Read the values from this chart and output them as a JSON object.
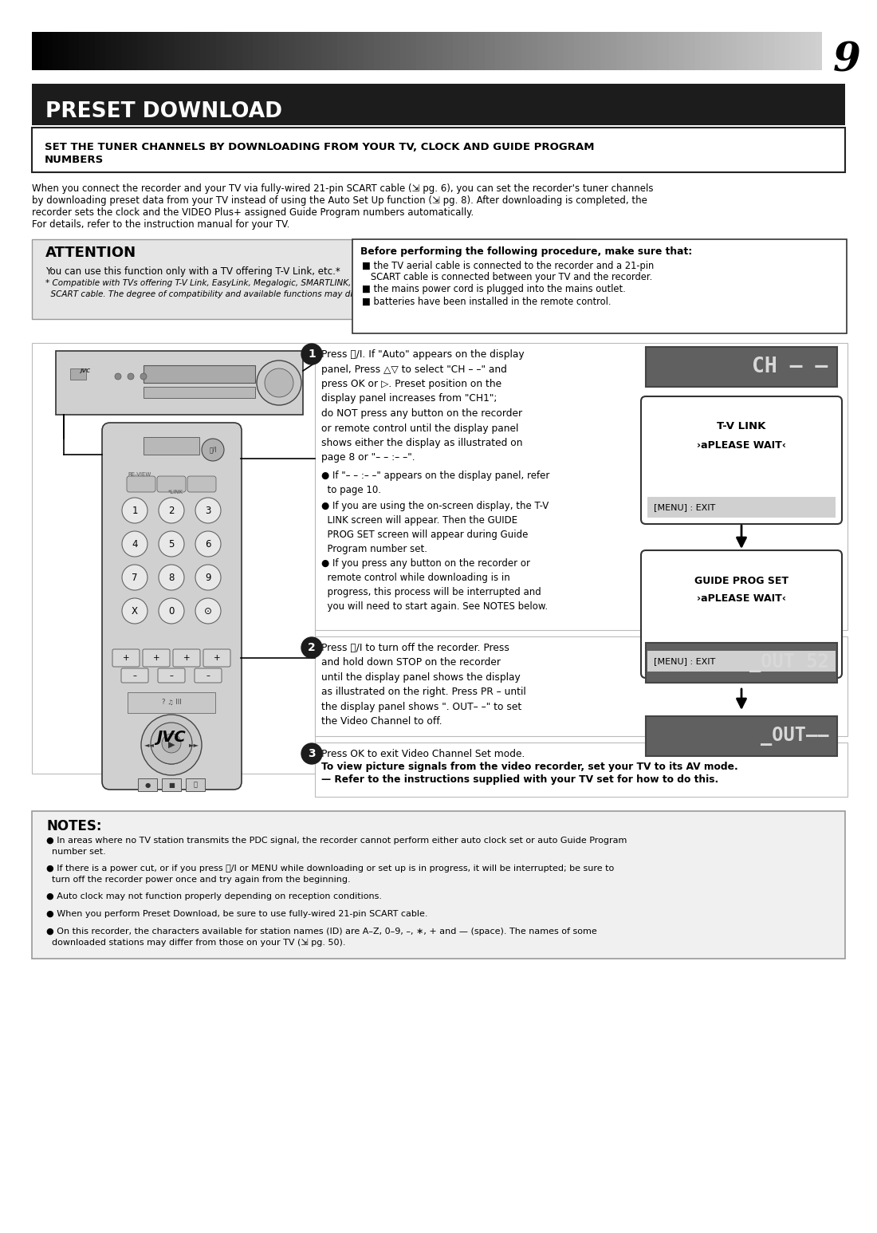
{
  "page_number": "9",
  "title": "PRESET DOWNLOAD",
  "subtitle": "SET THE TUNER CHANNELS BY DOWNLOADING FROM YOUR TV, CLOCK AND GUIDE PROGRAM\nNUMBERS",
  "intro_text1": "When you connect the recorder and your TV via fully-wired 21-pin SCART cable (⇲ pg. 6), you can set the recorder's tuner channels",
  "intro_text2": "by downloading preset data from your TV instead of using the Auto Set Up function (⇲ pg. 8). After downloading is completed, the",
  "intro_text3": "recorder sets the clock and the VIDEO Plus+ assigned Guide Program numbers automatically.",
  "intro_text4": "For details, refer to the instruction manual for your TV.",
  "attention_title": "ATTENTION",
  "attention_text1": "You can use this function only with a TV offering T-V Link, etc.*",
  "attention_text2": "* Compatible with TVs offering T-V Link, EasyLink, Megalogic, SMARTLINK, Q-Link, DATA LOGIC or NexTView Link via fully-wired 21-pin",
  "attention_text3": "  SCART cable. The degree of compatibility and available functions may differ by system.",
  "before_title": "Before performing the following procedure, make sure that:",
  "before_b1a": "■ the TV aerial cable is connected to the recorder and a 21-pin",
  "before_b1b": "   SCART cable is connected between your TV and the recorder.",
  "before_b2": "■ the mains power cord is plugged into the mains outlet.",
  "before_b3": "■ batteries have been installed in the remote control.",
  "step1_main": "Press ⏻/I. If \"Auto\" appears on the display\npanel, Press △▽ to select \"CH – –\" and\npress OK or ▷. Preset position on the\ndisplay panel increases from \"CH1\";\ndo NOT press any button on the recorder\nor remote control until the display panel\nshows either the display as illustrated on\npage 8 or \"– – :– –\".",
  "step1_b1": "● If \"– – :– –\" appears on the display panel, refer\n  to page 10.",
  "step1_b2": "● If you are using the on-screen display, the T-V\n  LINK screen will appear. Then the GUIDE\n  PROG SET screen will appear during Guide\n  Program number set.",
  "step1_b3": "● If you press any button on the recorder or\n  remote control while downloading is in\n  progress, this process will be interrupted and\n  you will need to start again. See NOTES below.",
  "step2_main": "Press ⏻/I to turn off the recorder. Press\nand hold down STOP on the recorder\nuntil the display panel shows the display\nas illustrated on the right. Press PR – until\nthe display panel shows \". OUT– –\" to set\nthe Video Channel to off.",
  "step3_line1": "Press OK to exit Video Channel Set mode.",
  "step3_line2": "To view picture signals from the video recorder, set your TV to its AV mode.",
  "step3_line3": "— Refer to the instructions supplied with your TV set for how to do this.",
  "notes_title": "NOTES:",
  "note1": "● In areas where no TV station transmits the PDC signal, the recorder cannot perform either auto clock set or auto Guide Program\n  number set.",
  "note2": "● If there is a power cut, or if you press ⏻/I or MENU while downloading or set up is in progress, it will be interrupted; be sure to\n  turn off the recorder power once and try again from the beginning.",
  "note3": "● Auto clock may not function properly depending on reception conditions.",
  "note4": "● When you perform Preset Download, be sure to use fully-wired 21-pin SCART cable.",
  "note5": "● On this recorder, the characters available for station names (ID) are A–Z, 0–9, –, ∗, + and — (space). The names of some\n  downloaded stations may differ from those on your TV (⇲ pg. 50).",
  "bg_color": "#ffffff",
  "title_bg": "#1c1c1c",
  "title_color": "#ffffff",
  "attn_bg": "#e5e5e5",
  "disp_bg": "#606060",
  "disp_text_color": "#d8d8d8",
  "notes_bg": "#f0f0f0"
}
